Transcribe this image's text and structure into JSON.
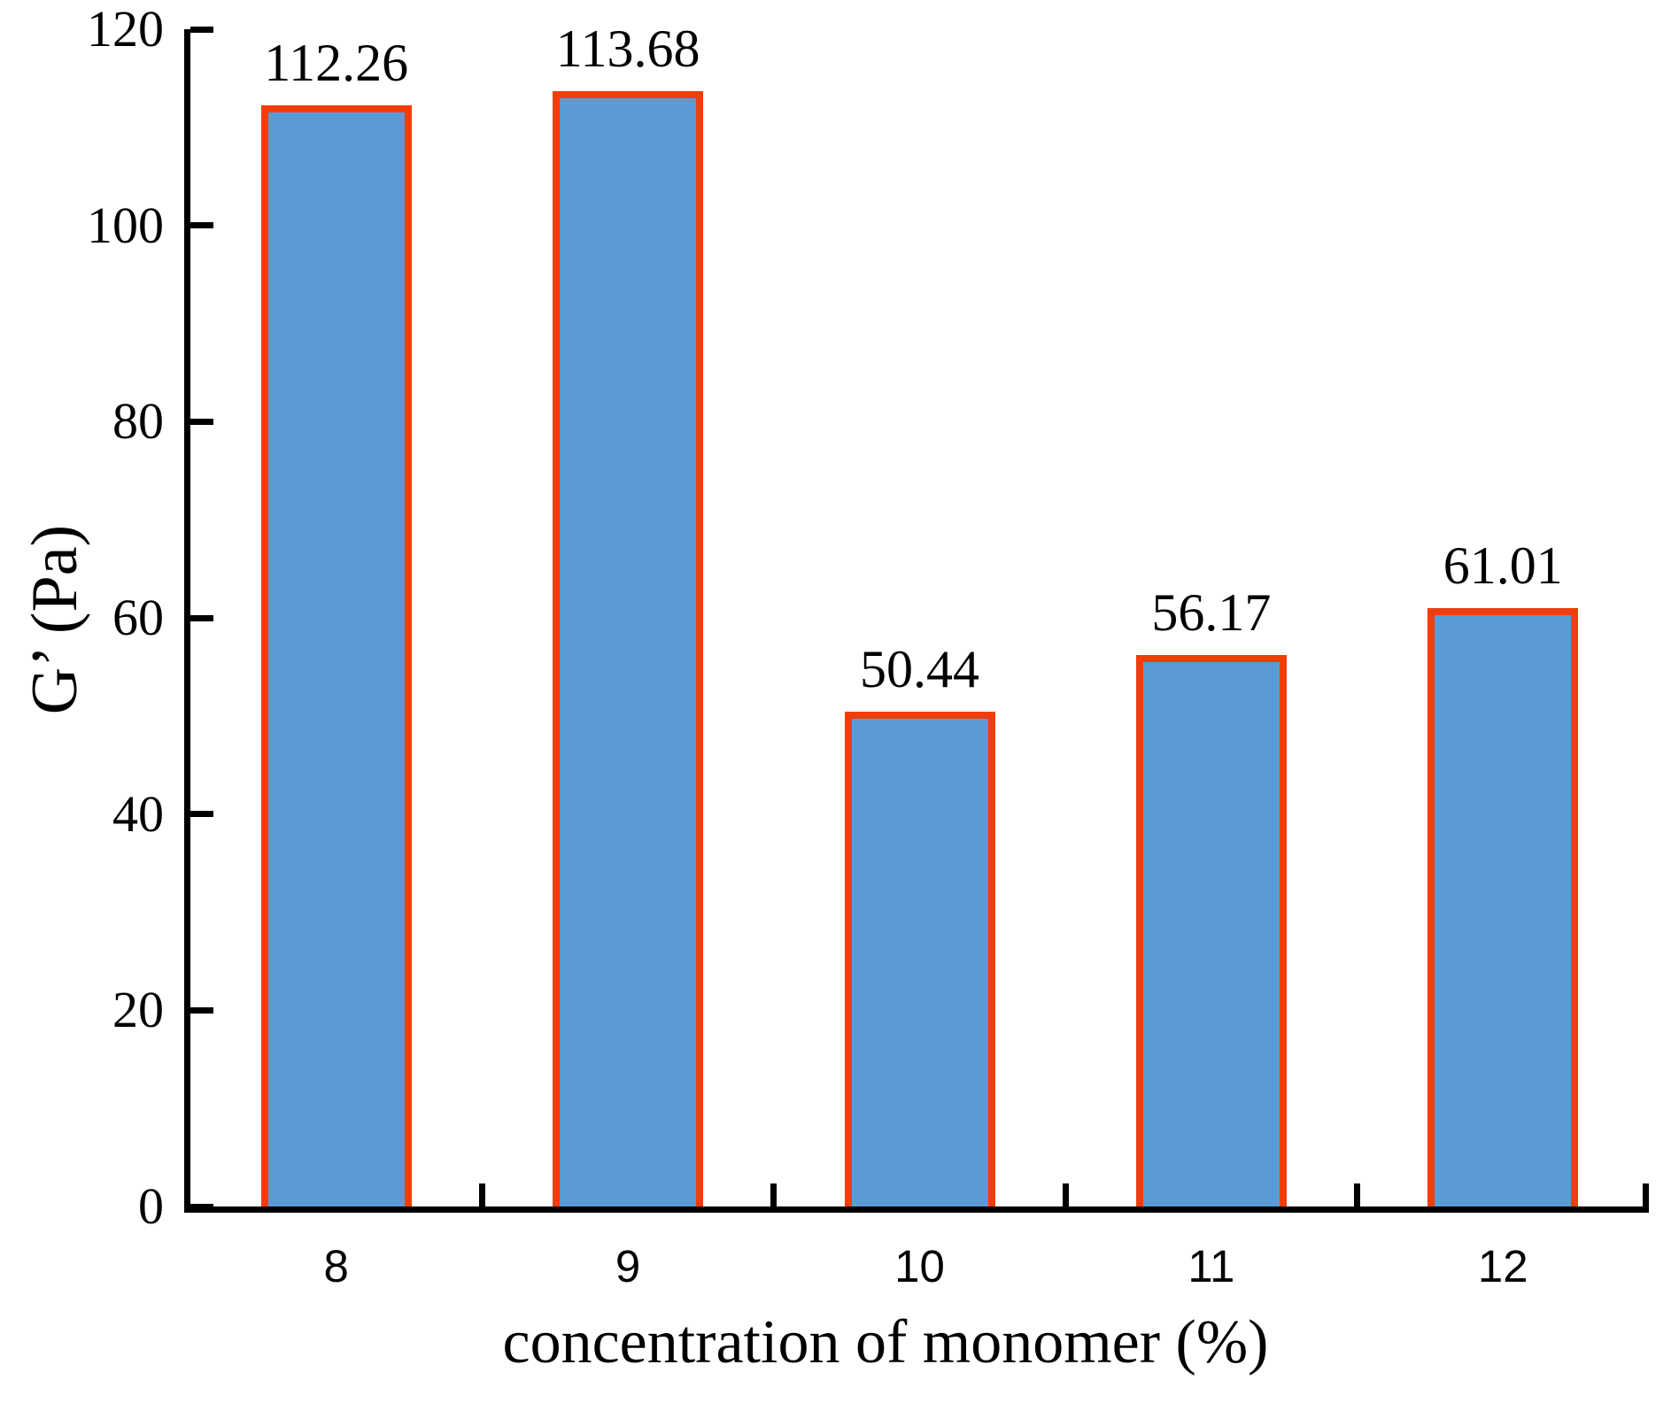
{
  "chart_data": {
    "type": "bar",
    "title": "",
    "xlabel": "concentration of monomer (%)",
    "ylabel": "G’ (Pa)",
    "categories": [
      "8",
      "9",
      "10",
      "11",
      "12"
    ],
    "values": [
      112.26,
      113.68,
      50.44,
      56.17,
      61.01
    ],
    "value_labels": [
      "112.26",
      "113.68",
      "50.44",
      "56.17",
      "61.01"
    ],
    "ylim": [
      0,
      120
    ],
    "yticks": [
      0,
      20,
      40,
      60,
      80,
      100,
      120
    ],
    "ytick_labels": [
      "0",
      "20",
      "40",
      "60",
      "80",
      "100",
      "120"
    ],
    "grid": "off",
    "legend": "none",
    "bar_fill_color": "#5B9BD5",
    "bar_edge_color": "#F23D09",
    "axis_color": "#000000",
    "text_color": "#000000"
  }
}
